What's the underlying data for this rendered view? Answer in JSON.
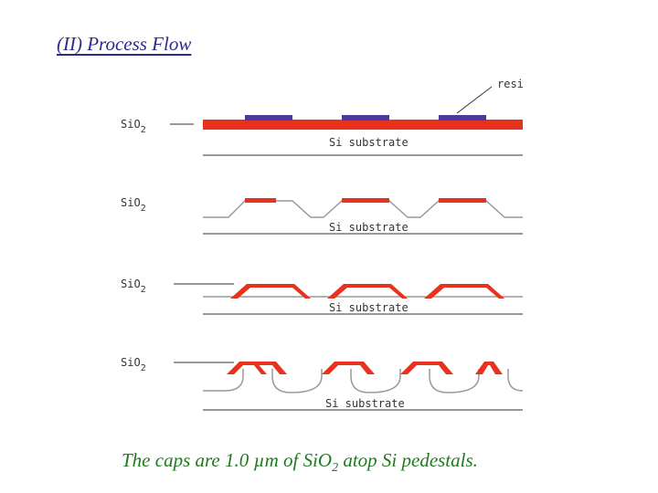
{
  "title": "(II) Process Flow",
  "resist_label": "resi",
  "steps": [
    {
      "oxide_label": "SiO",
      "oxide_sub": "2",
      "substrate_label": "Si substrate"
    },
    {
      "oxide_label": "SiO",
      "oxide_sub": "2",
      "substrate_label": "Si substrate"
    },
    {
      "oxide_label": "SiO",
      "oxide_sub": "2",
      "substrate_label": "Si substrate"
    },
    {
      "oxide_label": "SiO",
      "oxide_sub": "2",
      "substrate_label": "Si substrate"
    }
  ],
  "caption": {
    "part1": "The caps are 1.0 ",
    "mu": "µ",
    "part2": "m of SiO",
    "sub": "2",
    "part3": " atop Si pedestals."
  },
  "colors": {
    "oxide": "#e8321e",
    "resist": "#4a3aa0",
    "line": "#777777",
    "title": "#2b2b8c",
    "caption": "#1e7a1e"
  }
}
